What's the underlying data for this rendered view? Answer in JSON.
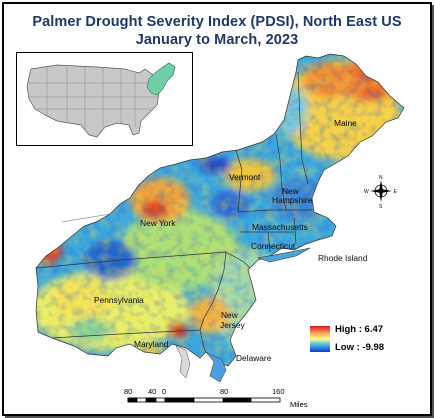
{
  "title": {
    "line1": "Palmer Drought Severity Index (PDSI), North East US",
    "line2": "January to March, 2023"
  },
  "states": [
    {
      "key": "maine",
      "label": "Maine"
    },
    {
      "key": "vermont",
      "label": "Vermont"
    },
    {
      "key": "new_hampshire_1",
      "label": "New"
    },
    {
      "key": "new_hampshire_2",
      "label": "Hampshire"
    },
    {
      "key": "new_york",
      "label": "New York"
    },
    {
      "key": "massachusetts",
      "label": "Massachusetts"
    },
    {
      "key": "connecticut",
      "label": "Connecticut"
    },
    {
      "key": "rhode_island",
      "label": "Rhode Island"
    },
    {
      "key": "pennsylvania",
      "label": "Pennsylvania"
    },
    {
      "key": "new_jersey_1",
      "label": "New"
    },
    {
      "key": "new_jersey_2",
      "label": "Jersey"
    },
    {
      "key": "maryland",
      "label": "Maryland"
    },
    {
      "key": "delaware",
      "label": "Delaware"
    }
  ],
  "legend": {
    "high_label": "High : 6.47",
    "low_label": "Low : -9.98",
    "high_color": "#d7191c",
    "mid_color": "#ffff8c",
    "low_color": "#0b3bd6"
  },
  "north_arrow": {
    "n": "N",
    "s": "S",
    "e": "E",
    "w": "W"
  },
  "scale_bar": {
    "ticks": [
      "80",
      "40",
      "0",
      "80",
      "160"
    ],
    "unit": "Miles"
  },
  "inset": {
    "highlight_color": "#6fd0a8",
    "base_color": "#c8c8c8"
  }
}
